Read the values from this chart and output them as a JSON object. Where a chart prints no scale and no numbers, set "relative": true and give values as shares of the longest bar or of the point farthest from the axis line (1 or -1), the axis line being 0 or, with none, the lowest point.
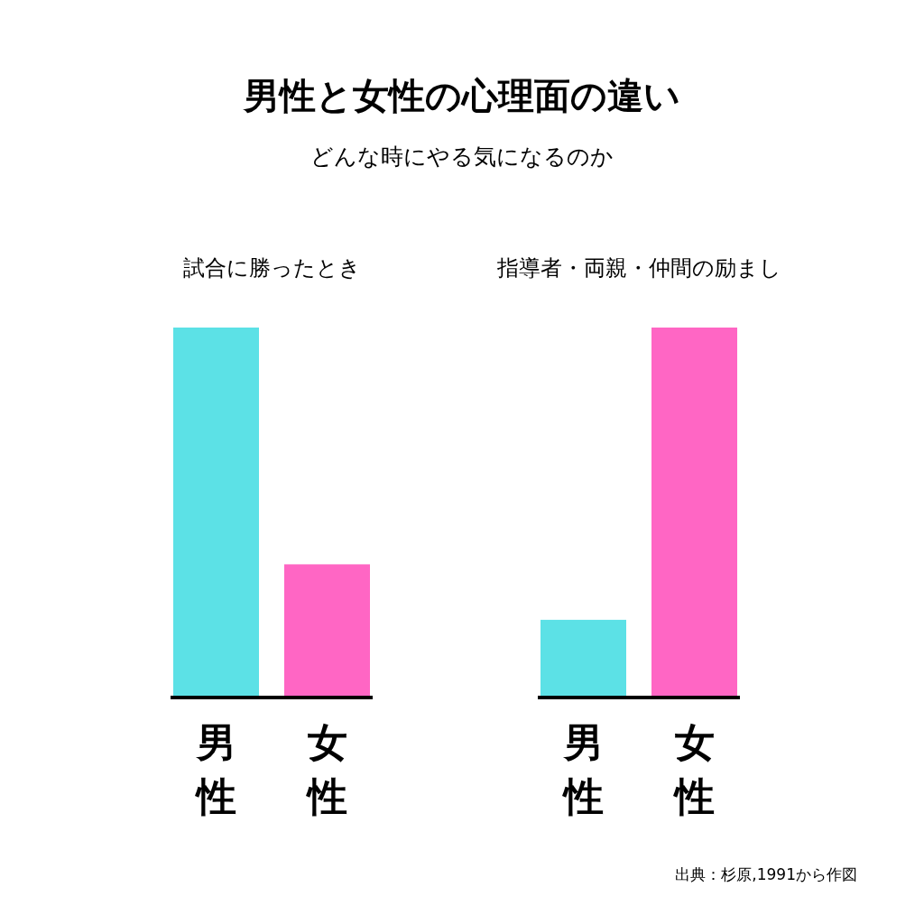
{
  "chart_data": [
    {
      "type": "other",
      "title": "男性と女性の心理面の違い",
      "subtitle": "どんな時にやる気になるのか"
    },
    {
      "type": "bar",
      "title": "試合に勝ったとき",
      "categories": [
        "男性",
        "女性"
      ],
      "values": [
        1,
        0.36
      ],
      "colors": [
        "#5ce1e6",
        "#ff66c4"
      ],
      "relative": true
    },
    {
      "type": "bar",
      "title": "指導者・両親・仲間の励まし",
      "categories": [
        "男性",
        "女性"
      ],
      "values": [
        0.21,
        1
      ],
      "colors": [
        "#5ce1e6",
        "#ff66c4"
      ],
      "relative": true,
      "annotations": [
        "出典：杉原,1991から作図"
      ]
    }
  ]
}
